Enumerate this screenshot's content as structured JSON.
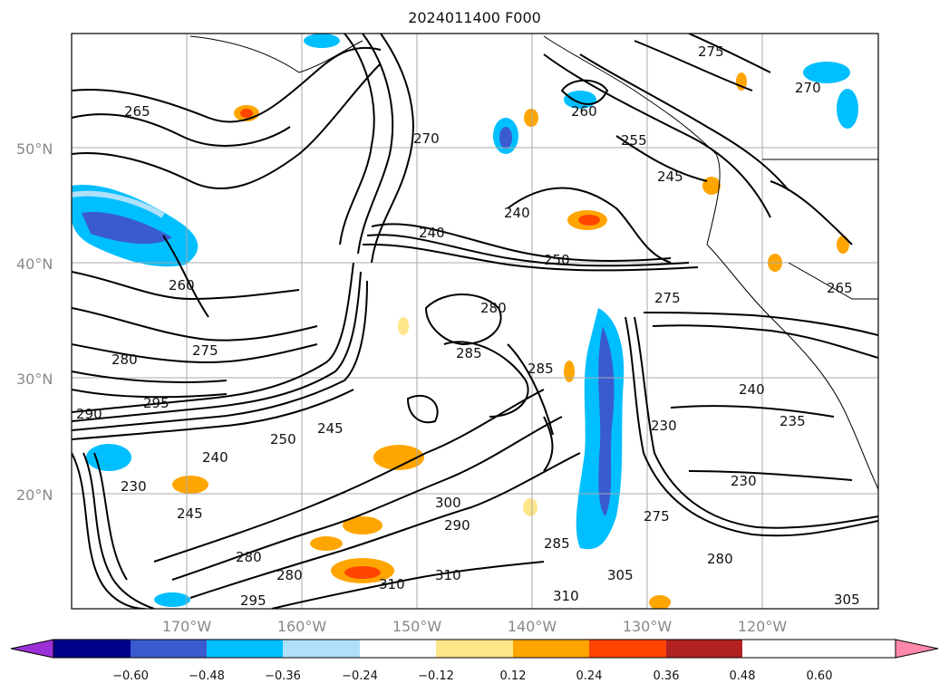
{
  "title": "2024011400 F000",
  "lat_labels": [
    "50°N",
    "40°N",
    "30°N",
    "20°N"
  ],
  "lon_labels": [
    "170°W",
    "160°W",
    "150°W",
    "140°W",
    "130°W",
    "120°W"
  ],
  "colorbar": {
    "colors": [
      "#9b30d6",
      "#00008b",
      "#3a5bd0",
      "#00bfff",
      "#aee0fa",
      "#ffffff",
      "#ffe68a",
      "#ffa500",
      "#ff4500",
      "#b22222",
      "#ff88aa"
    ],
    "tick_labels": [
      "−0.60",
      "−0.48",
      "−0.36",
      "−0.24",
      "−0.12",
      "0.12",
      "0.24",
      "0.36",
      "0.48",
      "0.60"
    ]
  },
  "contour_labels": [
    "265",
    "270",
    "275",
    "260",
    "255",
    "250",
    "245",
    "240",
    "280",
    "285",
    "290",
    "295",
    "300",
    "305",
    "310",
    "230",
    "235"
  ]
}
